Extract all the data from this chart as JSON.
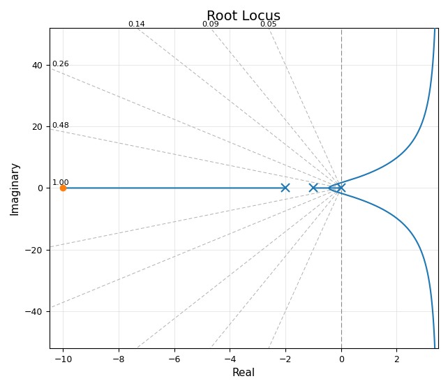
{
  "title": "Root Locus",
  "xlabel": "Real",
  "ylabel": "Imaginary",
  "xlim": [
    -10.5,
    3.5
  ],
  "ylim": [
    -52,
    52
  ],
  "poles": [
    0,
    -1,
    -2
  ],
  "zeros": [
    -10
  ],
  "zeta_values": [
    0.05,
    0.09,
    0.14,
    0.26,
    0.48,
    1.0
  ],
  "zeta_labels": [
    "0.05",
    "0.09",
    "0.14",
    "0.26",
    "0.48",
    "1.00"
  ],
  "bg_color": "#ffffff",
  "locus_color": "#1f77b4",
  "zeta_line_color": "#b0b0b0",
  "pole_color": "#1f77b4",
  "zero_color": "#ff7f0e",
  "vline_color": "#888888",
  "grid_color": "#dddddd"
}
